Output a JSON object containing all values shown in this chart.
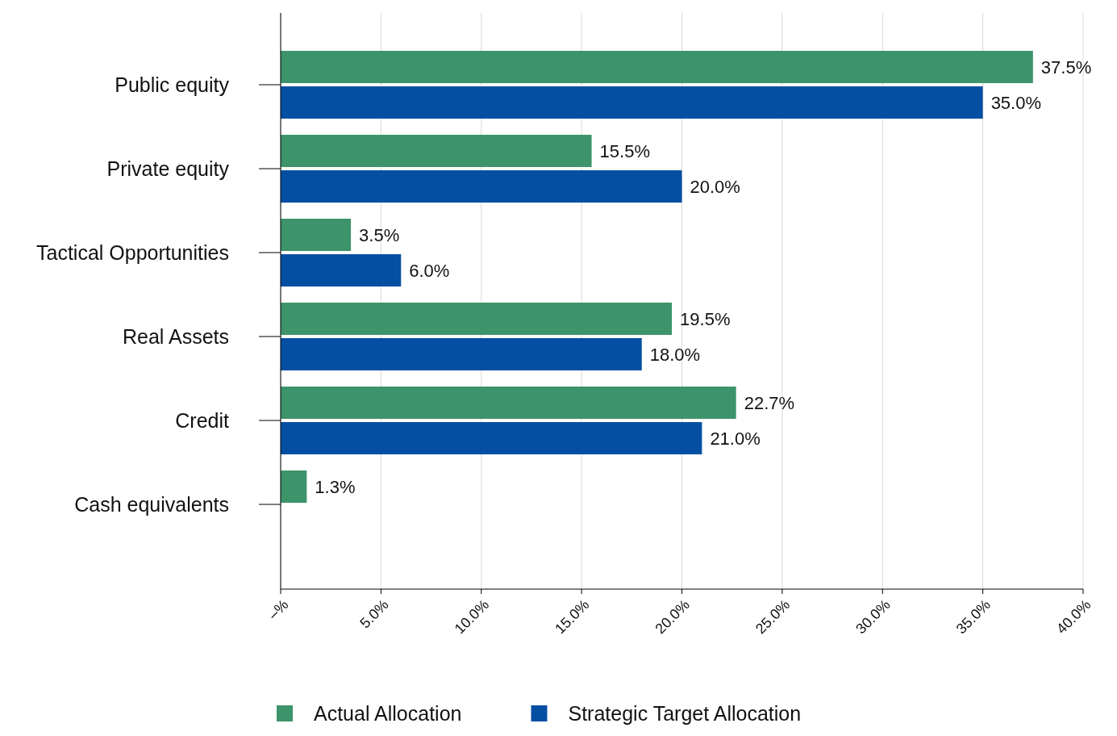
{
  "chart_data": {
    "type": "bar",
    "orientation": "horizontal",
    "categories": [
      "Public equity",
      "Private equity",
      "Tactical Opportunities",
      "Real Assets",
      "Credit",
      "Cash equivalents"
    ],
    "series": [
      {
        "name": "Actual Allocation",
        "color": "#3d946a",
        "values": [
          37.5,
          15.5,
          3.5,
          19.5,
          22.7,
          1.3
        ],
        "value_labels": [
          "37.5%",
          "15.5%",
          "3.5%",
          "19.5%",
          "22.7%",
          "1.3%"
        ]
      },
      {
        "name": "Strategic Target Allocation",
        "color": "#054fa3",
        "values": [
          35.0,
          20.0,
          6.0,
          18.0,
          21.0,
          null
        ],
        "value_labels": [
          "35.0%",
          "20.0%",
          "6.0%",
          "18.0%",
          "21.0%",
          null
        ]
      }
    ],
    "xlim": [
      0,
      40
    ],
    "xticks": [
      {
        "value": 0,
        "label": "–%"
      },
      {
        "value": 5,
        "label": "5.0%"
      },
      {
        "value": 10,
        "label": "10.0%"
      },
      {
        "value": 15,
        "label": "15.0%"
      },
      {
        "value": 20,
        "label": "20.0%"
      },
      {
        "value": 25,
        "label": "25.0%"
      },
      {
        "value": 30,
        "label": "30.0%"
      },
      {
        "value": 35,
        "label": "35.0%"
      },
      {
        "value": 40,
        "label": "40.0%"
      }
    ],
    "grid": "x",
    "legend": "bottom"
  }
}
